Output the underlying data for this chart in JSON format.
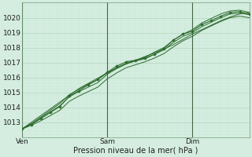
{
  "xlabel": "Pression niveau de la mer( hPa )",
  "bg_color": "#d4ede0",
  "grid_color_major": "#b8d8c4",
  "grid_color_minor": "#c8e8d4",
  "line_color": "#2d6b2d",
  "vline_color": "#446644",
  "ylim": [
    1012.4,
    1020.8
  ],
  "xlim": [
    0,
    96
  ],
  "yticks": [
    1013,
    1014,
    1015,
    1016,
    1017,
    1018,
    1019,
    1020
  ],
  "xtick_positions": [
    0,
    36,
    72
  ],
  "xtick_labels": [
    "Ven",
    "Sam",
    "Dim"
  ],
  "vlines": [
    0,
    36,
    72
  ],
  "x_pts": [
    0,
    4,
    8,
    12,
    16,
    20,
    24,
    28,
    32,
    36,
    40,
    44,
    48,
    52,
    56,
    60,
    64,
    68,
    72,
    76,
    80,
    84,
    88,
    92,
    96
  ],
  "y_main": [
    1012.55,
    1012.9,
    1013.3,
    1013.7,
    1014.1,
    1014.7,
    1015.05,
    1015.35,
    1015.65,
    1016.2,
    1016.6,
    1016.9,
    1017.1,
    1017.25,
    1017.55,
    1017.85,
    1018.35,
    1018.75,
    1019.0,
    1019.4,
    1019.7,
    1020.0,
    1020.25,
    1020.3,
    1020.2
  ],
  "y_marked": [
    1012.55,
    1012.85,
    1013.25,
    1013.65,
    1014.05,
    1014.75,
    1015.1,
    1015.5,
    1015.85,
    1016.35,
    1016.75,
    1017.05,
    1017.15,
    1017.3,
    1017.55,
    1017.95,
    1018.5,
    1018.9,
    1019.1,
    1019.55,
    1019.8,
    1020.1,
    1020.35,
    1020.4,
    1020.25
  ],
  "y_upper": [
    1012.55,
    1012.9,
    1013.35,
    1013.8,
    1014.25,
    1014.85,
    1015.2,
    1015.55,
    1015.85,
    1016.3,
    1016.65,
    1016.95,
    1017.15,
    1017.35,
    1017.7,
    1018.0,
    1018.5,
    1018.9,
    1019.2,
    1019.65,
    1019.95,
    1020.25,
    1020.45,
    1020.5,
    1020.35
  ],
  "y_lower": [
    1012.55,
    1012.8,
    1013.1,
    1013.45,
    1013.8,
    1014.4,
    1014.75,
    1015.05,
    1015.35,
    1015.9,
    1016.3,
    1016.65,
    1016.85,
    1017.05,
    1017.3,
    1017.6,
    1018.05,
    1018.45,
    1018.75,
    1019.15,
    1019.45,
    1019.75,
    1020.0,
    1020.1,
    1020.0
  ],
  "y_trend": [
    1012.55,
    1013.0,
    1013.45,
    1013.9,
    1014.35,
    1014.8,
    1015.25,
    1015.6,
    1015.95,
    1016.3,
    1016.6,
    1016.9,
    1017.15,
    1017.4,
    1017.65,
    1017.9,
    1018.2,
    1018.55,
    1018.9,
    1019.2,
    1019.5,
    1019.8,
    1020.05,
    1020.25,
    1020.35
  ]
}
